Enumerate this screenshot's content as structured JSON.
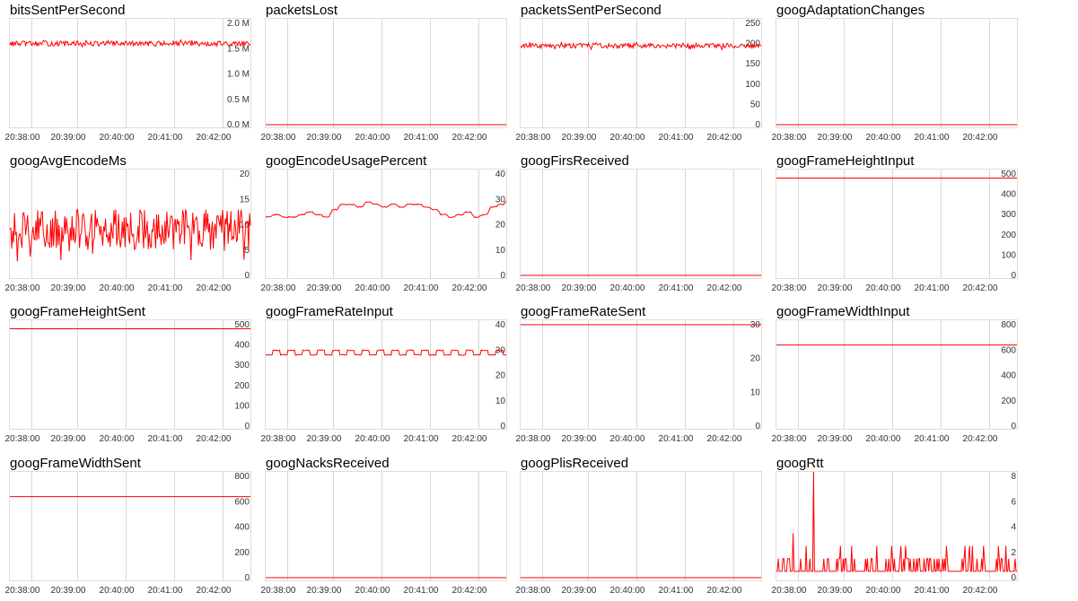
{
  "chart_data": [
    {
      "type": "line",
      "title": "bitsSentPerSecond",
      "xticks": [
        "20:38:00",
        "20:39:00",
        "20:40:00",
        "20:41:00",
        "20:42:00"
      ],
      "yticks": [
        "0.0 M",
        "0.5 M",
        "1.0 M",
        "1.5 M",
        "2.0 M"
      ],
      "yrange": [
        0,
        2.0
      ],
      "series": [
        {
          "pattern": "noise",
          "base": 1.6,
          "amplitude": 0.05,
          "values": []
        }
      ]
    },
    {
      "type": "line",
      "title": "packetsLost",
      "xticks": [
        "20:38:00",
        "20:39:00",
        "20:40:00",
        "20:41:00",
        "20:42:00"
      ],
      "yticks": [],
      "yrange": [
        0,
        1
      ],
      "series": [
        {
          "pattern": "flat",
          "base": 0,
          "values": []
        }
      ]
    },
    {
      "type": "line",
      "title": "packetsSentPerSecond",
      "xticks": [
        "20:38:00",
        "20:39:00",
        "20:40:00",
        "20:41:00",
        "20:42:00"
      ],
      "yticks": [
        "0",
        "50",
        "100",
        "150",
        "200",
        "250"
      ],
      "yrange": [
        0,
        250
      ],
      "series": [
        {
          "pattern": "noise",
          "base": 195,
          "amplitude": 6,
          "values": []
        }
      ]
    },
    {
      "type": "line",
      "title": "googAdaptationChanges",
      "xticks": [
        "20:38:00",
        "20:39:00",
        "20:40:00",
        "20:41:00",
        "20:42:00"
      ],
      "yticks": [],
      "yrange": [
        0,
        1
      ],
      "series": [
        {
          "pattern": "flat",
          "base": 0,
          "values": []
        }
      ]
    },
    {
      "type": "line",
      "title": "googAvgEncodeMs",
      "xticks": [
        "20:38:00",
        "20:39:00",
        "20:40:00",
        "20:41:00",
        "20:42:00"
      ],
      "yticks": [
        "0",
        "5",
        "10",
        "15",
        "20"
      ],
      "yrange": [
        0,
        20
      ],
      "series": [
        {
          "pattern": "noise",
          "base": 9,
          "amplitude": 4,
          "values": []
        }
      ]
    },
    {
      "type": "line",
      "title": "googEncodeUsagePercent",
      "xticks": [
        "20:38:00",
        "20:39:00",
        "20:40:00",
        "20:41:00",
        "20:42:00"
      ],
      "yticks": [
        "0",
        "10",
        "20",
        "30",
        "40"
      ],
      "yrange": [
        0,
        40
      ],
      "series": [
        {
          "pattern": "steps",
          "values": [
            23,
            24,
            23,
            23,
            24,
            25,
            24,
            23,
            26,
            28,
            28,
            27,
            29,
            28,
            27,
            28,
            27,
            28,
            28,
            27,
            26,
            24,
            23,
            24,
            25,
            23,
            24,
            27,
            28,
            30
          ]
        }
      ]
    },
    {
      "type": "line",
      "title": "googFirsReceived",
      "xticks": [
        "20:38:00",
        "20:39:00",
        "20:40:00",
        "20:41:00",
        "20:42:00"
      ],
      "yticks": [],
      "yrange": [
        0,
        1
      ],
      "series": [
        {
          "pattern": "flat",
          "base": 0,
          "values": []
        }
      ]
    },
    {
      "type": "line",
      "title": "googFrameHeightInput",
      "xticks": [
        "20:38:00",
        "20:39:00",
        "20:40:00",
        "20:41:00",
        "20:42:00"
      ],
      "yticks": [
        "0",
        "100",
        "200",
        "300",
        "400",
        "500"
      ],
      "yrange": [
        0,
        500
      ],
      "series": [
        {
          "pattern": "flat",
          "base": 480,
          "values": []
        }
      ]
    },
    {
      "type": "line",
      "title": "googFrameHeightSent",
      "xticks": [
        "20:38:00",
        "20:39:00",
        "20:40:00",
        "20:41:00",
        "20:42:00"
      ],
      "yticks": [
        "0",
        "100",
        "200",
        "300",
        "400",
        "500"
      ],
      "yrange": [
        0,
        500
      ],
      "series": [
        {
          "pattern": "flat",
          "base": 480,
          "values": []
        }
      ]
    },
    {
      "type": "line",
      "title": "googFrameRateInput",
      "xticks": [
        "20:38:00",
        "20:39:00",
        "20:40:00",
        "20:41:00",
        "20:42:00"
      ],
      "yticks": [
        "0",
        "10",
        "20",
        "30",
        "40"
      ],
      "yrange": [
        0,
        40
      ],
      "series": [
        {
          "pattern": "square",
          "base": 29,
          "amplitude": 1,
          "values": []
        }
      ]
    },
    {
      "type": "line",
      "title": "googFrameRateSent",
      "xticks": [
        "20:38:00",
        "20:39:00",
        "20:40:00",
        "20:41:00",
        "20:42:00"
      ],
      "yticks": [
        "0",
        "10",
        "20",
        "30"
      ],
      "yrange": [
        0,
        30
      ],
      "series": [
        {
          "pattern": "flat",
          "base": 30,
          "values": []
        }
      ]
    },
    {
      "type": "line",
      "title": "googFrameWidthInput",
      "xticks": [
        "20:38:00",
        "20:39:00",
        "20:40:00",
        "20:41:00",
        "20:42:00"
      ],
      "yticks": [
        "0",
        "200",
        "400",
        "600",
        "800"
      ],
      "yrange": [
        0,
        800
      ],
      "series": [
        {
          "pattern": "flat",
          "base": 640,
          "values": []
        }
      ]
    },
    {
      "type": "line",
      "title": "googFrameWidthSent",
      "xticks": [
        "20:38:00",
        "20:39:00",
        "20:40:00",
        "20:41:00",
        "20:42:00"
      ],
      "yticks": [
        "0",
        "200",
        "400",
        "600",
        "800"
      ],
      "yrange": [
        0,
        800
      ],
      "series": [
        {
          "pattern": "flat",
          "base": 640,
          "values": []
        }
      ]
    },
    {
      "type": "line",
      "title": "googNacksReceived",
      "xticks": [
        "20:38:00",
        "20:39:00",
        "20:40:00",
        "20:41:00",
        "20:42:00"
      ],
      "yticks": [],
      "yrange": [
        0,
        1
      ],
      "series": [
        {
          "pattern": "flat",
          "base": 0,
          "values": []
        }
      ]
    },
    {
      "type": "line",
      "title": "googPlisReceived",
      "xticks": [
        "20:38:00",
        "20:39:00",
        "20:40:00",
        "20:41:00",
        "20:42:00"
      ],
      "yticks": [],
      "yrange": [
        0,
        1
      ],
      "series": [
        {
          "pattern": "flat",
          "base": 0,
          "values": []
        }
      ]
    },
    {
      "type": "line",
      "title": "googRtt",
      "xticks": [
        "20:38:00",
        "20:39:00",
        "20:40:00",
        "20:41:00",
        "20:42:00"
      ],
      "yticks": [
        "0",
        "2",
        "4",
        "6",
        "8"
      ],
      "yrange": [
        0,
        8
      ],
      "series": [
        {
          "pattern": "rtt",
          "base": 0.5,
          "values": []
        }
      ]
    }
  ]
}
